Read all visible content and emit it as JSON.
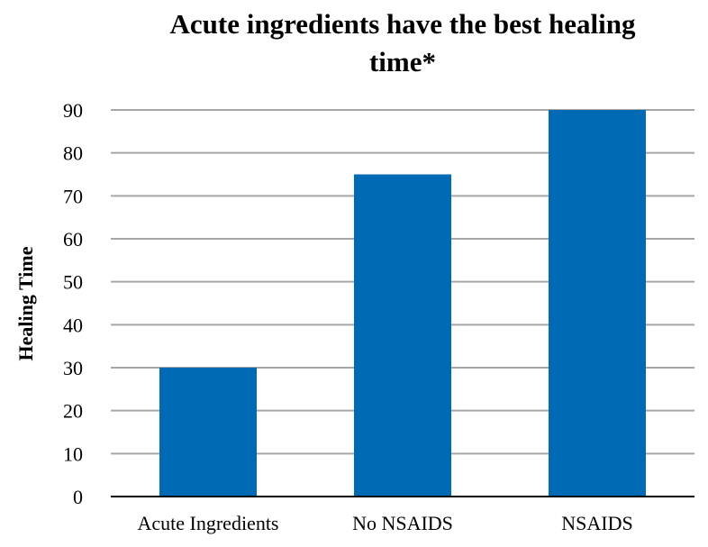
{
  "chart_data": {
    "type": "bar",
    "title": "Acute ingredients have the best healing time*",
    "xlabel": "",
    "ylabel": "Healing Time",
    "categories": [
      "Acute Ingredients",
      "No NSAIDS",
      "NSAIDS"
    ],
    "values": [
      30,
      75,
      90
    ],
    "ylim": [
      0,
      90
    ],
    "yticks": [
      0,
      10,
      20,
      30,
      40,
      50,
      60,
      70,
      80,
      90
    ],
    "grid": true,
    "legend": "none",
    "colors": {
      "bar": "#006AB4",
      "grid": "#A6A6A6",
      "axis": "#000000"
    }
  }
}
